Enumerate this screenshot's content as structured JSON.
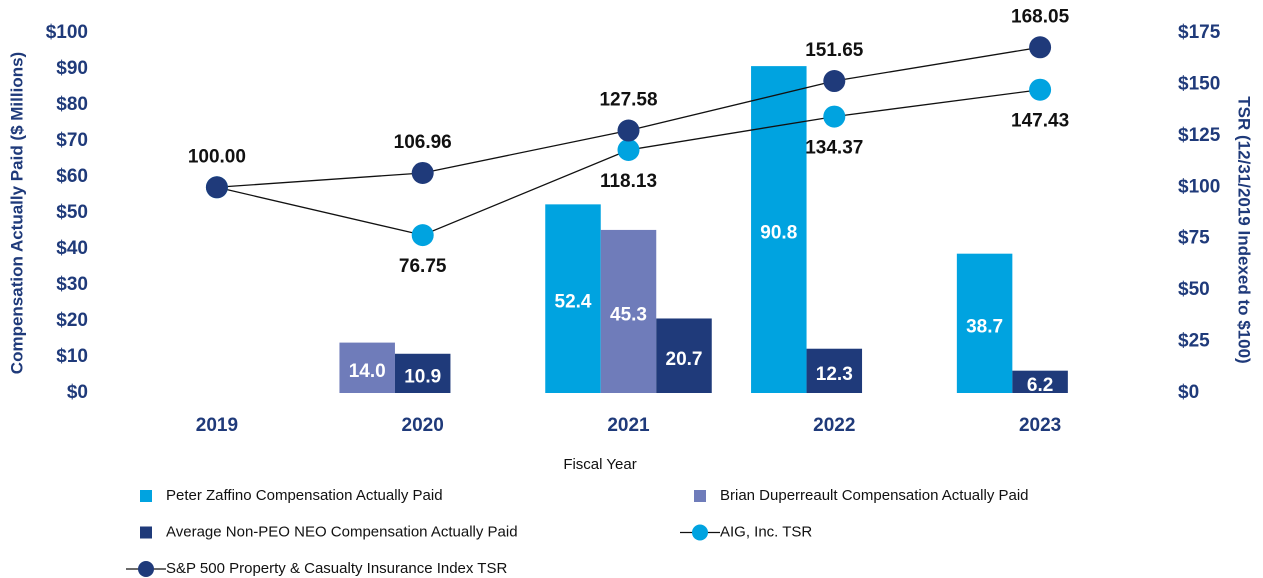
{
  "chart_data": {
    "type": "bar",
    "xlabel": "Fiscal Year",
    "ylabel": "Compensation Actually Paid ($ Millions)",
    "y2label": "TSR (12/31/2019 Indexed to $100)",
    "categories": [
      "2019",
      "2020",
      "2021",
      "2022",
      "2023"
    ],
    "ylim": [
      0,
      100
    ],
    "yticks": [
      {
        "value": 0,
        "label": "$0"
      },
      {
        "value": 10,
        "label": "$10"
      },
      {
        "value": 20,
        "label": "$20"
      },
      {
        "value": 30,
        "label": "$30"
      },
      {
        "value": 40,
        "label": "$40"
      },
      {
        "value": 50,
        "label": "$50"
      },
      {
        "value": 60,
        "label": "$60"
      },
      {
        "value": 70,
        "label": "$70"
      },
      {
        "value": 80,
        "label": "$80"
      },
      {
        "value": 90,
        "label": "$90"
      },
      {
        "value": 100,
        "label": "$100"
      }
    ],
    "y2lim": [
      0,
      175
    ],
    "y2ticks": [
      {
        "value": 0,
        "label": "$0"
      },
      {
        "value": 25,
        "label": "$25"
      },
      {
        "value": 50,
        "label": "$50"
      },
      {
        "value": 75,
        "label": "$75"
      },
      {
        "value": 100,
        "label": "$100"
      },
      {
        "value": 125,
        "label": "$125"
      },
      {
        "value": 150,
        "label": "$150"
      },
      {
        "value": 175,
        "label": "$175"
      }
    ],
    "series": [
      {
        "name": "Peter Zaffino Compensation Actually Paid",
        "type": "bar",
        "color": "#00a3e0",
        "values": [
          null,
          null,
          52.4,
          90.8,
          38.7
        ],
        "value_labels": [
          null,
          null,
          "52.4",
          "90.8",
          "38.7"
        ]
      },
      {
        "name": "Brian Duperreault Compensation Actually Paid",
        "type": "bar",
        "color": "#6f7cba",
        "values": [
          null,
          14.0,
          45.3,
          null,
          null
        ],
        "value_labels": [
          null,
          "14.0",
          "45.3",
          null,
          null
        ]
      },
      {
        "name": "Average Non-PEO NEO Compensation Actually Paid",
        "type": "bar",
        "color": "#1f3a7a",
        "values": [
          null,
          10.9,
          20.7,
          12.3,
          6.2
        ],
        "value_labels": [
          null,
          "10.9",
          "20.7",
          "12.3",
          "6.2"
        ]
      },
      {
        "name": "AIG, Inc. TSR",
        "type": "line",
        "axis": "y2",
        "color": "#00a3e0",
        "values": [
          100,
          76.75,
          118.13,
          134.37,
          147.43
        ],
        "value_labels": [
          null,
          "76.75",
          "118.13",
          "134.37",
          "147.43"
        ]
      },
      {
        "name": "S&P 500 Property & Casualty Insurance Index TSR",
        "type": "line",
        "axis": "y2",
        "color": "#1f3a7a",
        "values": [
          100,
          106.96,
          127.58,
          151.65,
          168.05
        ],
        "value_labels": [
          "100.00",
          "106.96",
          "127.58",
          "151.65",
          "168.05"
        ]
      }
    ]
  }
}
